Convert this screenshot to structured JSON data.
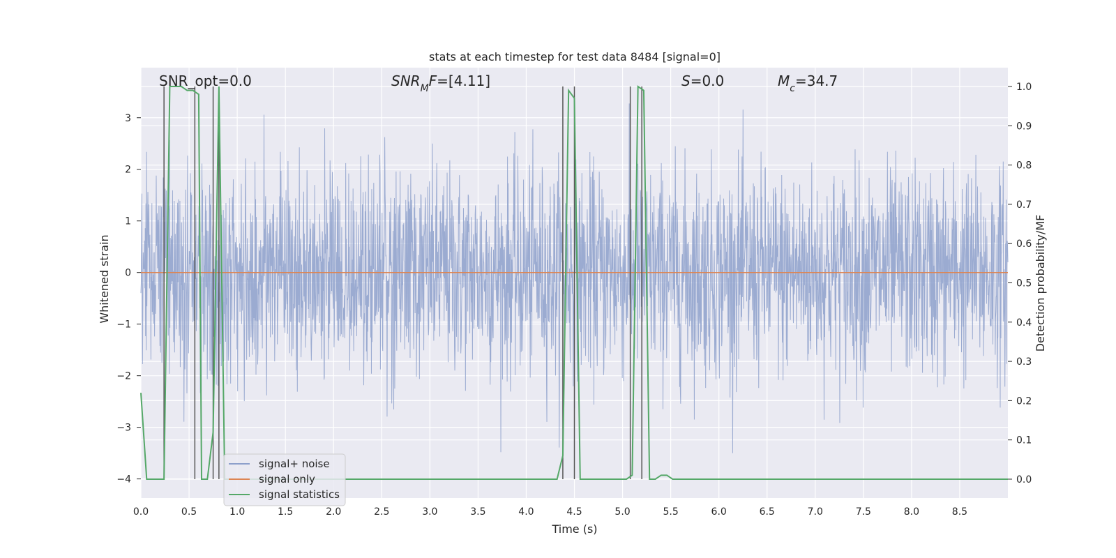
{
  "chart_data": {
    "type": "line",
    "title": "stats at each timestep for test data 8484 [signal=0]",
    "xlabel": "Time (s)",
    "ylabel": "Whitened strain",
    "y2label": "Detection probability/MF",
    "xlim": [
      0.0,
      9.0
    ],
    "ylim": [
      -4.37,
      3.97
    ],
    "y2lim": [
      -0.048,
      1.048
    ],
    "xticks": [
      0.0,
      0.5,
      1.0,
      1.5,
      2.0,
      2.5,
      3.0,
      3.5,
      4.0,
      4.5,
      5.0,
      5.5,
      6.0,
      6.5,
      7.0,
      7.5,
      8.0,
      8.5
    ],
    "xtick_labels": [
      "0.0",
      "0.5",
      "1.0",
      "1.5",
      "2.0",
      "2.5",
      "3.0",
      "3.5",
      "4.0",
      "4.5",
      "5.0",
      "5.5",
      "6.0",
      "6.5",
      "7.0",
      "7.5",
      "8.0",
      "8.5"
    ],
    "yticks": [
      -4,
      -3,
      -2,
      -1,
      0,
      1,
      2,
      3
    ],
    "ytick_labels": [
      "−4",
      "−3",
      "−2",
      "−1",
      "0",
      "1",
      "2",
      "3"
    ],
    "y2ticks": [
      0.0,
      0.1,
      0.2,
      0.3,
      0.4,
      0.5,
      0.6,
      0.7,
      0.8,
      0.9,
      1.0
    ],
    "y2tick_labels": [
      "0.0",
      "0.1",
      "0.2",
      "0.3",
      "0.4",
      "0.5",
      "0.6",
      "0.7",
      "0.8",
      "0.9",
      "1.0"
    ],
    "grid": true,
    "legend_position": "lower-left",
    "series": [
      {
        "name": "signal+ noise",
        "color": "#8da0cb",
        "kind": "noise",
        "description_values": {
          "envelope_approx": [
            -2.5,
            2.5
          ],
          "peaks_approx": [
            -3.4,
            3.5
          ]
        }
      },
      {
        "name": "signal only",
        "color": "#dd8452",
        "x": [
          0.0,
          9.0
        ],
        "y": [
          0.0,
          0.0
        ]
      },
      {
        "name": "signal statistics",
        "color": "#55a868",
        "axis": "right",
        "x": [
          0.0,
          0.06,
          0.12,
          0.18,
          0.24,
          0.3,
          0.36,
          0.42,
          0.48,
          0.54,
          0.6,
          0.63,
          0.69,
          0.75,
          0.81,
          0.87,
          0.93,
          4.32,
          4.38,
          4.44,
          4.5,
          4.56,
          4.62,
          5.04,
          5.1,
          5.16,
          5.22,
          5.28,
          5.34,
          5.4,
          5.46,
          5.52,
          9.0
        ],
        "y": [
          0.22,
          0.0,
          0.0,
          0.0,
          0.0,
          1.0,
          1.0,
          1.0,
          0.99,
          0.99,
          0.98,
          0.0,
          0.0,
          0.12,
          1.0,
          0.0,
          0.0,
          0.0,
          0.06,
          0.99,
          0.97,
          0.0,
          0.0,
          0.0,
          0.01,
          1.0,
          0.99,
          0.0,
          0.0,
          0.01,
          0.01,
          0.0,
          0.0
        ]
      }
    ],
    "vertical_lines_x": [
      0.24,
      0.56,
      0.75,
      0.81,
      4.38,
      4.5,
      5.08,
      5.2
    ],
    "annotations": [
      {
        "label": "SNR_opt=0.0",
        "parts": [
          {
            "t": "SNR_opt=0.0",
            "italic": false
          }
        ]
      },
      {
        "label": "SNR_MF=[4.11]",
        "parts": [
          {
            "t": "SNR",
            "italic": true
          },
          {
            "t": "M",
            "italic": true,
            "sub": true
          },
          {
            "t": "F",
            "italic": true
          },
          {
            "t": "=[4.11]",
            "italic": false
          }
        ]
      },
      {
        "label": "S=0.0",
        "parts": [
          {
            "t": "S",
            "italic": true
          },
          {
            "t": "=0.0",
            "italic": false
          }
        ]
      },
      {
        "label": "M_c=34.7",
        "parts": [
          {
            "t": "M",
            "italic": true
          },
          {
            "t": "c",
            "italic": true,
            "sub": true
          },
          {
            "t": "=34.7",
            "italic": false
          }
        ]
      }
    ],
    "colors": {
      "plot_background": "#eaeaf2",
      "grid": "#ffffff",
      "vline": "#555555"
    }
  }
}
